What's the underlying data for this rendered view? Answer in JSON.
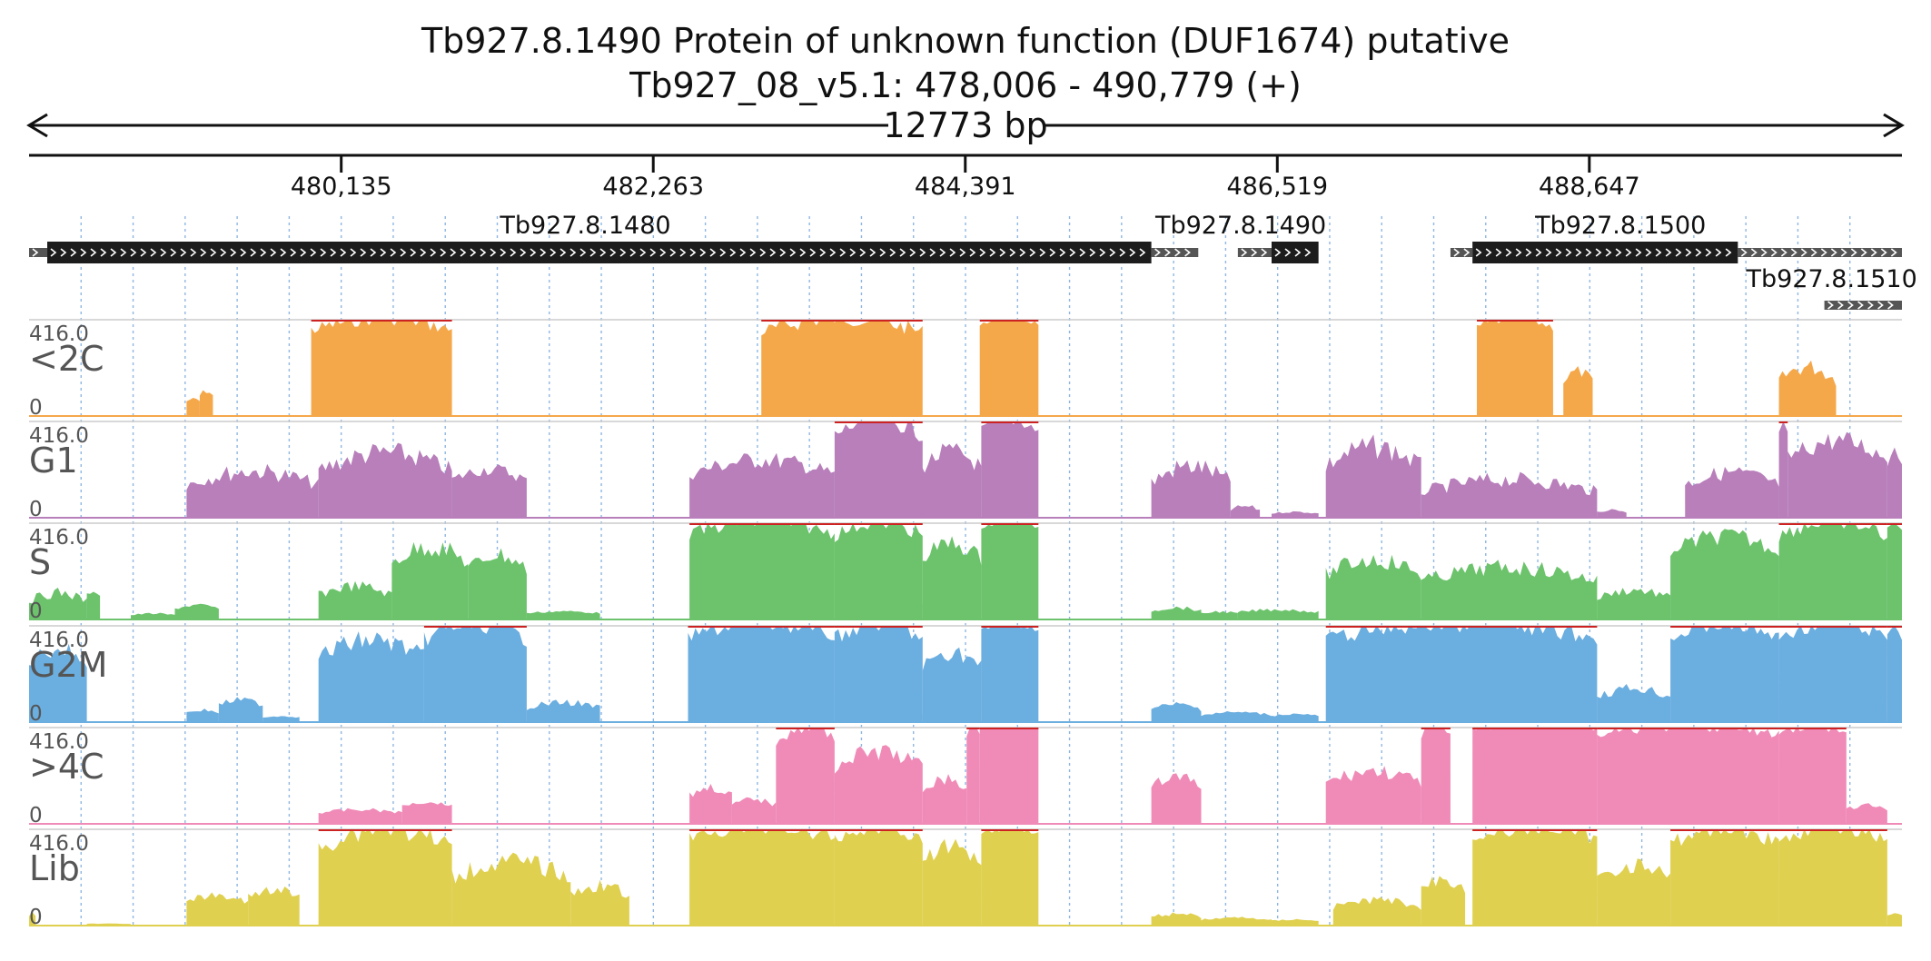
{
  "header": {
    "title_line1": "Tb927.8.1490  Protein of unknown function (DUF1674)  putative",
    "title_line2": "Tb927_08_v5.1: 478,006 - 490,779 (+)",
    "span_label": "12773 bp"
  },
  "chart_data": {
    "type": "area",
    "region": {
      "chromosome": "Tb927_08_v5.1",
      "start": 478006,
      "end": 490779,
      "strand": "+"
    },
    "axis": {
      "ticks": [
        480135,
        482263,
        484391,
        486519,
        488647
      ],
      "tick_labels": [
        "480,135",
        "482,263",
        "484,391",
        "486,519",
        "488,647"
      ]
    },
    "grid": true,
    "genes": [
      {
        "name": "Tb927.8.1480",
        "label_at": 481800,
        "segments": [
          {
            "start": 478006,
            "end": 478130,
            "kind": "utr"
          },
          {
            "start": 478130,
            "end": 485660,
            "kind": "cds"
          },
          {
            "start": 485660,
            "end": 485980,
            "kind": "utr"
          }
        ]
      },
      {
        "name": "Tb927.8.1490",
        "label_at": 486270,
        "segments": [
          {
            "start": 486250,
            "end": 486480,
            "kind": "utr"
          },
          {
            "start": 486480,
            "end": 486800,
            "kind": "cds"
          }
        ]
      },
      {
        "name": "Tb927.8.1500",
        "label_at": 488860,
        "segments": [
          {
            "start": 487700,
            "end": 487850,
            "kind": "utr"
          },
          {
            "start": 487850,
            "end": 489660,
            "kind": "cds"
          },
          {
            "start": 489660,
            "end": 490779,
            "kind": "utr"
          }
        ]
      },
      {
        "name": "Tb927.8.1510",
        "label_at": 490300,
        "row": 2,
        "segments": [
          {
            "start": 490250,
            "end": 490779,
            "kind": "utr"
          }
        ]
      }
    ],
    "tracks": [
      {
        "name": "<2C",
        "color": "#f5a84a",
        "max": 416.0,
        "min": 0,
        "blocks": [
          [
            479080,
            479170,
            80,
            0.3
          ],
          [
            479170,
            479260,
            120,
            0.4
          ],
          [
            479930,
            480890,
            416,
            0.3
          ],
          [
            483000,
            484100,
            416,
            0.35
          ],
          [
            484490,
            484890,
            416,
            0.1
          ],
          [
            486440,
            486660,
            2,
            0
          ],
          [
            487880,
            488400,
            416,
            0.2
          ],
          [
            488470,
            488670,
            220,
            0.5
          ],
          [
            489940,
            490330,
            250,
            0.6
          ],
          [
            490780,
            490779,
            0,
            0
          ]
        ]
      },
      {
        "name": "G1",
        "color": "#b87fbb",
        "max": 416.0,
        "min": 0,
        "blocks": [
          [
            479080,
            479980,
            240,
            0.65
          ],
          [
            479980,
            480890,
            330,
            0.6
          ],
          [
            480890,
            481400,
            240,
            0.5
          ],
          [
            481400,
            481580,
            0,
            0
          ],
          [
            482510,
            483500,
            290,
            0.55
          ],
          [
            483500,
            484100,
            416,
            0.4
          ],
          [
            484100,
            484300,
            50,
            0.5
          ],
          [
            484090,
            484500,
            330,
            0.55
          ],
          [
            484500,
            484890,
            416,
            0.25
          ],
          [
            485660,
            486200,
            270,
            0.7
          ],
          [
            486200,
            486400,
            60,
            0.7
          ],
          [
            486480,
            486800,
            30,
            0.6
          ],
          [
            486850,
            487500,
            360,
            0.6
          ],
          [
            487500,
            488700,
            200,
            0.7
          ],
          [
            488700,
            488900,
            40,
            0.6
          ],
          [
            489300,
            489940,
            230,
            0.6
          ],
          [
            489940,
            490000,
            416,
            0.5
          ],
          [
            490000,
            490679,
            380,
            0.5
          ],
          [
            490679,
            490779,
            330,
            0.4
          ]
        ]
      },
      {
        "name": "S",
        "color": "#6cc36c",
        "max": 416.0,
        "min": 0,
        "blocks": [
          [
            478006,
            478400,
            140,
            0.7
          ],
          [
            478400,
            478490,
            150,
            0.5
          ],
          [
            478700,
            479000,
            30,
            0.6
          ],
          [
            479000,
            479300,
            70,
            0.5
          ],
          [
            479980,
            480480,
            170,
            0.6
          ],
          [
            480480,
            481000,
            360,
            0.5
          ],
          [
            481000,
            481400,
            320,
            0.5
          ],
          [
            481400,
            481900,
            40,
            0.5
          ],
          [
            482510,
            483500,
            416,
            0.3
          ],
          [
            483500,
            484100,
            416,
            0.35
          ],
          [
            484100,
            484300,
            100,
            0.6
          ],
          [
            484100,
            484500,
            370,
            0.45
          ],
          [
            484500,
            484890,
            416,
            0.1
          ],
          [
            485660,
            486000,
            60,
            0.6
          ],
          [
            486000,
            486250,
            40,
            0.6
          ],
          [
            486250,
            486800,
            50,
            0.6
          ],
          [
            486850,
            487500,
            300,
            0.55
          ],
          [
            487500,
            488700,
            260,
            0.55
          ],
          [
            488700,
            489200,
            150,
            0.6
          ],
          [
            489200,
            489940,
            400,
            0.4
          ],
          [
            489940,
            490679,
            416,
            0.35
          ],
          [
            490679,
            490779,
            416,
            0.3
          ]
        ]
      },
      {
        "name": "G2M",
        "color": "#6baee0",
        "max": 416.0,
        "min": 0,
        "blocks": [
          [
            478006,
            478400,
            350,
            0.4
          ],
          [
            479080,
            479300,
            60,
            0.5
          ],
          [
            479300,
            479600,
            110,
            0.5
          ],
          [
            479600,
            479850,
            30,
            0.5
          ],
          [
            479980,
            480700,
            400,
            0.45
          ],
          [
            480700,
            481400,
            416,
            0.4
          ],
          [
            481400,
            481900,
            100,
            0.6
          ],
          [
            482500,
            483500,
            416,
            0.3
          ],
          [
            483500,
            484100,
            416,
            0.35
          ],
          [
            484100,
            484300,
            50,
            0.6
          ],
          [
            484100,
            484500,
            340,
            0.45
          ],
          [
            484500,
            484890,
            416,
            0.1
          ],
          [
            485660,
            486000,
            90,
            0.6
          ],
          [
            486000,
            486480,
            50,
            0.6
          ],
          [
            486480,
            486800,
            40,
            0.5
          ],
          [
            486850,
            488700,
            416,
            0.35
          ],
          [
            488700,
            489200,
            170,
            0.55
          ],
          [
            489200,
            489940,
            416,
            0.35
          ],
          [
            489940,
            490679,
            416,
            0.3
          ],
          [
            490679,
            490779,
            416,
            0.3
          ]
        ]
      },
      {
        "name": ">4C",
        "color": "#f08bb8",
        "max": 416.0,
        "min": 0,
        "blocks": [
          [
            479980,
            480550,
            70,
            0.5
          ],
          [
            480550,
            480890,
            100,
            0.3
          ],
          [
            482510,
            482800,
            180,
            0.5
          ],
          [
            482800,
            483100,
            120,
            0.5
          ],
          [
            483100,
            483500,
            416,
            0.35
          ],
          [
            483500,
            484100,
            350,
            0.45
          ],
          [
            484100,
            484400,
            220,
            0.5
          ],
          [
            484400,
            484490,
            416,
            0.2
          ],
          [
            484490,
            484890,
            416,
            0
          ],
          [
            485660,
            486000,
            230,
            0.5
          ],
          [
            486850,
            487500,
            260,
            0.5
          ],
          [
            487500,
            487700,
            416,
            0.25
          ],
          [
            487850,
            488700,
            416,
            0.05
          ],
          [
            488700,
            489940,
            416,
            0.2
          ],
          [
            489940,
            490400,
            416,
            0.15
          ],
          [
            490400,
            490679,
            90,
            0.5
          ]
        ]
      },
      {
        "name": "Lib",
        "color": "#e0d050",
        "max": 416.0,
        "min": 0,
        "blocks": [
          [
            478006,
            478050,
            60,
            0.4
          ],
          [
            478400,
            478700,
            10,
            0.4
          ],
          [
            479080,
            479500,
            150,
            0.55
          ],
          [
            479500,
            479850,
            180,
            0.5
          ],
          [
            479980,
            480890,
            416,
            0.55
          ],
          [
            480890,
            481700,
            320,
            0.55
          ],
          [
            481700,
            482100,
            200,
            0.55
          ],
          [
            482510,
            483500,
            416,
            0.25
          ],
          [
            483500,
            484100,
            416,
            0.3
          ],
          [
            484100,
            484500,
            380,
            0.4
          ],
          [
            484500,
            484890,
            416,
            0.1
          ],
          [
            485660,
            486000,
            60,
            0.6
          ],
          [
            486000,
            486480,
            40,
            0.6
          ],
          [
            486480,
            486800,
            30,
            0.5
          ],
          [
            486900,
            487500,
            130,
            0.6
          ],
          [
            487500,
            487800,
            230,
            0.5
          ],
          [
            487850,
            488700,
            416,
            0.3
          ],
          [
            488700,
            489200,
            300,
            0.5
          ],
          [
            489200,
            489940,
            416,
            0.4
          ],
          [
            489940,
            490679,
            416,
            0.3
          ],
          [
            490679,
            490779,
            60,
            0.4
          ]
        ]
      }
    ]
  }
}
